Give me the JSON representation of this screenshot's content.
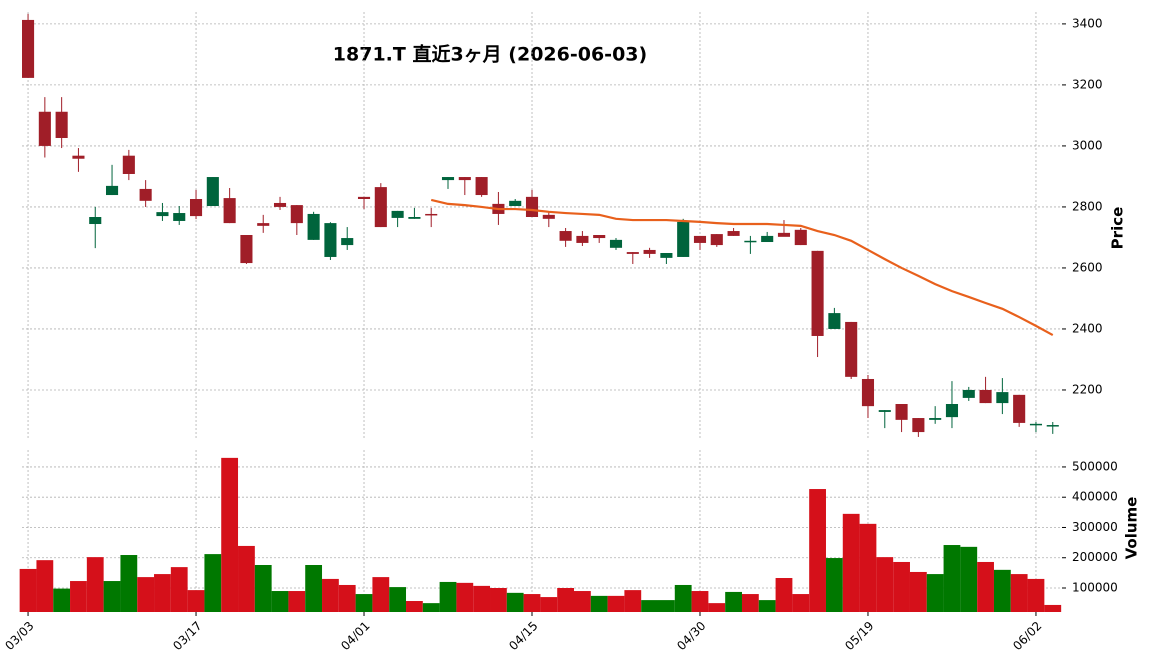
{
  "chart_data": {
    "type": "candlestick",
    "title": "1871.T  直近3ヶ月  (2026-06-03)",
    "ylabel": "Price",
    "volume_label": "Volume",
    "grid": true,
    "up_color": "#00643c",
    "down_color": "#a01e28",
    "volume_up_color": "#007800",
    "volume_down_color": "#d5101a",
    "xlim": [
      -0.36,
      61.55
    ],
    "xticks": [
      {
        "value": 0,
        "label": "03/03"
      },
      {
        "value": 10,
        "label": "03/17"
      },
      {
        "value": 20,
        "label": "04/01"
      },
      {
        "value": 30,
        "label": "04/15"
      },
      {
        "value": 40,
        "label": "04/30"
      },
      {
        "value": 50,
        "label": "05/19"
      },
      {
        "value": 60,
        "label": "06/02"
      }
    ],
    "ylim": [
      2036,
      3439
    ],
    "yticks": [
      2200,
      2400,
      2600,
      2800,
      3000,
      3200,
      3400
    ],
    "volume_ylim": [
      20700,
      556000
    ],
    "volume_yticks": [
      100000,
      200000,
      300000,
      400000,
      500000
    ],
    "open": [
      3413,
      3112,
      3112,
      2968,
      2744,
      2839,
      2968,
      2859,
      2770,
      2754,
      2826,
      2803,
      2829,
      2708,
      2747,
      2813,
      2806,
      2692,
      2636,
      2675,
      2833,
      2865,
      2764,
      2761,
      2777,
      2888,
      2898,
      2898,
      2810,
      2803,
      2833,
      2774,
      2721,
      2705,
      2708,
      2666,
      2652,
      2659,
      2633,
      2636,
      2705,
      2711,
      2721,
      2685,
      2685,
      2715,
      2725,
      2656,
      2400,
      2423,
      2236,
      2128,
      2154,
      2108,
      2102,
      2111,
      2174,
      2200,
      2157,
      2184,
      2085,
      2082
    ],
    "high": [
      3433,
      3160,
      3160,
      2993,
      2800,
      2938,
      2987,
      2888,
      2813,
      2803,
      2856,
      2898,
      2862,
      2708,
      2774,
      2833,
      2806,
      2784,
      2750,
      2734,
      2833,
      2878,
      2787,
      2797,
      2797,
      2898,
      2898,
      2898,
      2849,
      2826,
      2856,
      2784,
      2731,
      2721,
      2708,
      2698,
      2652,
      2666,
      2649,
      2761,
      2705,
      2711,
      2731,
      2705,
      2718,
      2757,
      2731,
      2656,
      2469,
      2423,
      2249,
      2134,
      2154,
      2108,
      2147,
      2229,
      2210,
      2243,
      2239,
      2184,
      2095,
      2095
    ],
    "low": [
      3223,
      2962,
      2993,
      2915,
      2665,
      2839,
      2888,
      2800,
      2754,
      2741,
      2760,
      2803,
      2747,
      2613,
      2715,
      2790,
      2708,
      2692,
      2626,
      2659,
      2793,
      2734,
      2734,
      2761,
      2734,
      2859,
      2839,
      2833,
      2741,
      2803,
      2767,
      2734,
      2669,
      2672,
      2682,
      2659,
      2613,
      2633,
      2613,
      2636,
      2659,
      2669,
      2705,
      2646,
      2685,
      2705,
      2675,
      2308,
      2400,
      2236,
      2108,
      2075,
      2062,
      2046,
      2089,
      2075,
      2164,
      2157,
      2121,
      2079,
      2062,
      2056
    ],
    "close": [
      3223,
      3000,
      3026,
      2958,
      2767,
      2869,
      2908,
      2820,
      2783,
      2780,
      2770,
      2898,
      2747,
      2616,
      2738,
      2800,
      2747,
      2777,
      2747,
      2698,
      2826,
      2734,
      2787,
      2767,
      2774,
      2898,
      2888,
      2839,
      2777,
      2820,
      2767,
      2761,
      2689,
      2682,
      2698,
      2692,
      2646,
      2646,
      2649,
      2751,
      2682,
      2675,
      2705,
      2689,
      2705,
      2702,
      2675,
      2377,
      2452,
      2243,
      2147,
      2134,
      2102,
      2062,
      2108,
      2154,
      2200,
      2157,
      2193,
      2092,
      2089,
      2085
    ],
    "volume": [
      163000,
      192000,
      98000,
      123000,
      202000,
      123000,
      209000,
      136000,
      146000,
      169000,
      93000,
      212000,
      530000,
      239000,
      176000,
      90000,
      90000,
      176000,
      130000,
      110000,
      80000,
      136000,
      103000,
      57000,
      50000,
      120000,
      117000,
      107000,
      100000,
      84000,
      80000,
      70000,
      100000,
      90000,
      74000,
      74000,
      93000,
      60000,
      60000,
      110000,
      90000,
      50000,
      87000,
      80000,
      60000,
      133000,
      80000,
      427000,
      199000,
      345000,
      312000,
      202000,
      186000,
      153000,
      146000,
      242000,
      236000,
      186000,
      160000,
      146000,
      130000,
      44000
    ],
    "ma": {
      "color": "#e8601c",
      "values": [
        null,
        null,
        null,
        null,
        null,
        null,
        null,
        null,
        null,
        null,
        null,
        null,
        null,
        null,
        null,
        null,
        null,
        null,
        null,
        null,
        null,
        null,
        null,
        null,
        2823,
        2810,
        2806,
        2800,
        2793,
        2793,
        2790,
        2784,
        2780,
        2777,
        2774,
        2761,
        2757,
        2757,
        2757,
        2754,
        2751,
        2747,
        2744,
        2744,
        2744,
        2741,
        2738,
        2721,
        2708,
        2689,
        2659,
        2629,
        2600,
        2574,
        2547,
        2524,
        2505,
        2485,
        2466,
        2439,
        2410,
        2380
      ]
    }
  }
}
